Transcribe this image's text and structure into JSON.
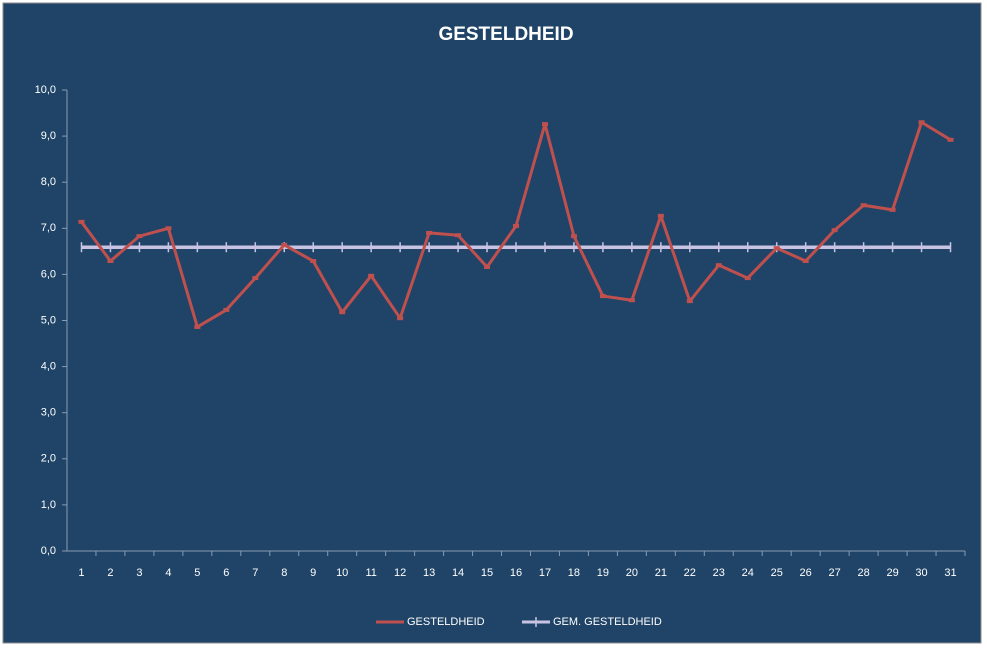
{
  "chart_data": {
    "type": "line",
    "title": "GESTELDHEID",
    "categories": [
      "1",
      "2",
      "3",
      "4",
      "5",
      "6",
      "7",
      "8",
      "9",
      "10",
      "11",
      "12",
      "13",
      "14",
      "15",
      "16",
      "17",
      "18",
      "19",
      "20",
      "21",
      "22",
      "23",
      "24",
      "25",
      "26",
      "27",
      "28",
      "29",
      "30",
      "31"
    ],
    "series": [
      {
        "name": "GESTELDHEID",
        "color": "#c0504d",
        "values": [
          7.14,
          6.29,
          6.83,
          7.0,
          4.86,
          5.23,
          5.92,
          6.64,
          6.29,
          5.18,
          5.97,
          5.05,
          6.9,
          6.85,
          6.16,
          7.05,
          9.26,
          6.83,
          5.53,
          5.44,
          7.27,
          5.42,
          6.2,
          5.92,
          6.57,
          6.29,
          6.96,
          7.5,
          7.4,
          9.3,
          8.92
        ]
      },
      {
        "name": "GEM. GESTELDHEID",
        "color": "#c9c3e3",
        "values": [
          6.59,
          6.59,
          6.59,
          6.59,
          6.59,
          6.59,
          6.59,
          6.59,
          6.59,
          6.59,
          6.59,
          6.59,
          6.59,
          6.59,
          6.59,
          6.59,
          6.59,
          6.59,
          6.59,
          6.59,
          6.59,
          6.59,
          6.59,
          6.59,
          6.59,
          6.59,
          6.59,
          6.59,
          6.59,
          6.59,
          6.59
        ]
      }
    ],
    "ylim": [
      0,
      10
    ],
    "yticks": [
      {
        "value": 0,
        "label": "0,0"
      },
      {
        "value": 1,
        "label": "1,0"
      },
      {
        "value": 2,
        "label": "2,0"
      },
      {
        "value": 3,
        "label": "3,0"
      },
      {
        "value": 4,
        "label": "4,0"
      },
      {
        "value": 5,
        "label": "5,0"
      },
      {
        "value": 6,
        "label": "6,0"
      },
      {
        "value": 7,
        "label": "7,0"
      },
      {
        "value": 8,
        "label": "8,0"
      },
      {
        "value": 9,
        "label": "9,0"
      },
      {
        "value": 10,
        "label": "10,0"
      }
    ],
    "grid": false,
    "legend": "bottom",
    "background": "#1f4467"
  }
}
